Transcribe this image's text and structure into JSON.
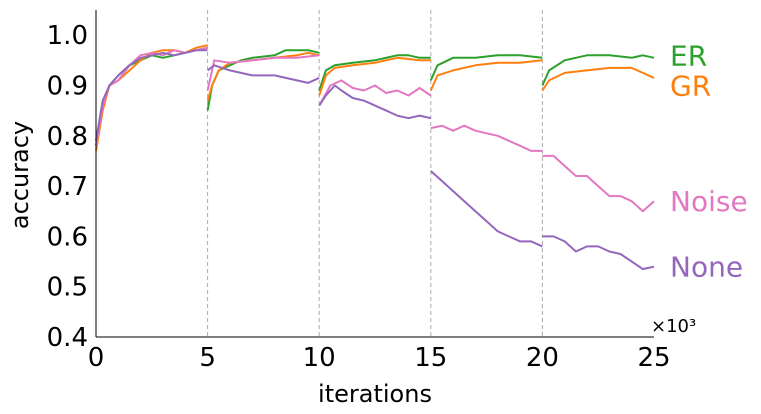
{
  "chart_data": {
    "type": "line",
    "title": "",
    "xlabel": "iterations",
    "ylabel": "accuracy",
    "x_multiplier_label": "×10³",
    "xlim": [
      0,
      25
    ],
    "ylim": [
      0.4,
      1.05
    ],
    "xticks": [
      0,
      5,
      10,
      15,
      20,
      25
    ],
    "xtick_labels": [
      "0",
      "5",
      "10",
      "15",
      "20",
      "25"
    ],
    "yticks": [
      0.4,
      0.5,
      0.6,
      0.7,
      0.8,
      0.9,
      1.0
    ],
    "ytick_labels": [
      "0.4",
      "0.5",
      "0.6",
      "0.7",
      "0.8",
      "0.9",
      "1.0"
    ],
    "task_boundaries": [
      5,
      10,
      15,
      20
    ],
    "grid": false,
    "series": [
      {
        "name": "ER",
        "color": "#2ca02c",
        "label_y": 0.96,
        "segments": [
          [
            [
              0,
              0.78
            ],
            [
              0.3,
              0.86
            ],
            [
              0.6,
              0.9
            ],
            [
              1,
              0.92
            ],
            [
              1.5,
              0.94
            ],
            [
              2,
              0.95
            ],
            [
              2.5,
              0.96
            ],
            [
              3,
              0.955
            ],
            [
              3.5,
              0.96
            ],
            [
              4,
              0.965
            ],
            [
              4.5,
              0.97
            ],
            [
              5,
              0.975
            ]
          ],
          [
            [
              5,
              0.85
            ],
            [
              5.2,
              0.9
            ],
            [
              5.5,
              0.93
            ],
            [
              6,
              0.94
            ],
            [
              6.5,
              0.95
            ],
            [
              7,
              0.955
            ],
            [
              8,
              0.96
            ],
            [
              8.5,
              0.97
            ],
            [
              9,
              0.97
            ],
            [
              9.5,
              0.97
            ],
            [
              10,
              0.965
            ]
          ],
          [
            [
              10,
              0.89
            ],
            [
              10.3,
              0.93
            ],
            [
              10.7,
              0.94
            ],
            [
              11.5,
              0.945
            ],
            [
              12.5,
              0.95
            ],
            [
              13.5,
              0.96
            ],
            [
              14,
              0.96
            ],
            [
              14.5,
              0.955
            ],
            [
              15,
              0.955
            ]
          ],
          [
            [
              15,
              0.91
            ],
            [
              15.3,
              0.94
            ],
            [
              16,
              0.955
            ],
            [
              17,
              0.955
            ],
            [
              18,
              0.96
            ],
            [
              19,
              0.96
            ],
            [
              20,
              0.955
            ]
          ],
          [
            [
              20,
              0.9
            ],
            [
              20.3,
              0.93
            ],
            [
              21,
              0.95
            ],
            [
              22,
              0.96
            ],
            [
              23,
              0.96
            ],
            [
              24,
              0.955
            ],
            [
              24.5,
              0.96
            ],
            [
              25,
              0.955
            ]
          ]
        ]
      },
      {
        "name": "GR",
        "color": "#ff7f0e",
        "label_y": 0.9,
        "segments": [
          [
            [
              0,
              0.77
            ],
            [
              0.3,
              0.85
            ],
            [
              0.6,
              0.9
            ],
            [
              1,
              0.91
            ],
            [
              1.5,
              0.93
            ],
            [
              2,
              0.95
            ],
            [
              2.5,
              0.965
            ],
            [
              3,
              0.97
            ],
            [
              3.5,
              0.97
            ],
            [
              4,
              0.965
            ],
            [
              4.5,
              0.975
            ],
            [
              5,
              0.98
            ]
          ],
          [
            [
              5,
              0.87
            ],
            [
              5.2,
              0.9
            ],
            [
              5.5,
              0.93
            ],
            [
              6,
              0.945
            ],
            [
              7,
              0.95
            ],
            [
              8,
              0.955
            ],
            [
              9,
              0.96
            ],
            [
              9.5,
              0.965
            ],
            [
              10,
              0.96
            ]
          ],
          [
            [
              10,
              0.88
            ],
            [
              10.3,
              0.92
            ],
            [
              10.7,
              0.935
            ],
            [
              11.5,
              0.94
            ],
            [
              12.5,
              0.945
            ],
            [
              13.5,
              0.955
            ],
            [
              14.5,
              0.95
            ],
            [
              15,
              0.95
            ]
          ],
          [
            [
              15,
              0.89
            ],
            [
              15.3,
              0.92
            ],
            [
              16,
              0.93
            ],
            [
              17,
              0.94
            ],
            [
              18,
              0.945
            ],
            [
              19,
              0.945
            ],
            [
              20,
              0.95
            ]
          ],
          [
            [
              20,
              0.89
            ],
            [
              20.3,
              0.91
            ],
            [
              21,
              0.925
            ],
            [
              22,
              0.93
            ],
            [
              23,
              0.935
            ],
            [
              24,
              0.935
            ],
            [
              24.5,
              0.925
            ],
            [
              25,
              0.915
            ]
          ]
        ]
      },
      {
        "name": "Noise",
        "color": "#e377c2",
        "label_y": 0.67,
        "segments": [
          [
            [
              0,
              0.78
            ],
            [
              0.3,
              0.86
            ],
            [
              0.6,
              0.9
            ],
            [
              1,
              0.91
            ],
            [
              1.5,
              0.94
            ],
            [
              2,
              0.96
            ],
            [
              2.5,
              0.965
            ],
            [
              3,
              0.96
            ],
            [
              3.5,
              0.97
            ],
            [
              4,
              0.965
            ],
            [
              4.5,
              0.97
            ],
            [
              5,
              0.975
            ]
          ],
          [
            [
              5,
              0.89
            ],
            [
              5.3,
              0.95
            ],
            [
              6,
              0.945
            ],
            [
              7,
              0.95
            ],
            [
              8,
              0.955
            ],
            [
              9,
              0.955
            ],
            [
              10,
              0.96
            ]
          ],
          [
            [
              10,
              0.86
            ],
            [
              10.5,
              0.9
            ],
            [
              11,
              0.91
            ],
            [
              11.5,
              0.895
            ],
            [
              12,
              0.89
            ],
            [
              12.5,
              0.9
            ],
            [
              13,
              0.885
            ],
            [
              13.5,
              0.89
            ],
            [
              14,
              0.88
            ],
            [
              14.5,
              0.895
            ],
            [
              15,
              0.88
            ]
          ],
          [
            [
              15,
              0.815
            ],
            [
              15.5,
              0.82
            ],
            [
              16,
              0.81
            ],
            [
              16.5,
              0.82
            ],
            [
              17,
              0.81
            ],
            [
              17.5,
              0.805
            ],
            [
              18,
              0.8
            ],
            [
              18.5,
              0.79
            ],
            [
              19,
              0.78
            ],
            [
              19.5,
              0.77
            ],
            [
              20,
              0.77
            ]
          ],
          [
            [
              20,
              0.76
            ],
            [
              20.5,
              0.76
            ],
            [
              21,
              0.74
            ],
            [
              21.5,
              0.72
            ],
            [
              22,
              0.72
            ],
            [
              22.5,
              0.7
            ],
            [
              23,
              0.68
            ],
            [
              23.5,
              0.68
            ],
            [
              24,
              0.67
            ],
            [
              24.5,
              0.65
            ],
            [
              25,
              0.67
            ]
          ]
        ]
      },
      {
        "name": "None",
        "color": "#9467bd",
        "label_y": 0.54,
        "segments": [
          [
            [
              0,
              0.79
            ],
            [
              0.3,
              0.87
            ],
            [
              0.6,
              0.9
            ],
            [
              1,
              0.92
            ],
            [
              1.5,
              0.94
            ],
            [
              2,
              0.955
            ],
            [
              2.5,
              0.96
            ],
            [
              3,
              0.965
            ],
            [
              3.5,
              0.96
            ],
            [
              4,
              0.965
            ],
            [
              4.5,
              0.97
            ],
            [
              5,
              0.97
            ]
          ],
          [
            [
              5,
              0.93
            ],
            [
              5.3,
              0.94
            ],
            [
              6,
              0.93
            ],
            [
              7,
              0.92
            ],
            [
              8,
              0.92
            ],
            [
              9,
              0.91
            ],
            [
              9.5,
              0.905
            ],
            [
              10,
              0.915
            ]
          ],
          [
            [
              10,
              0.86
            ],
            [
              10.3,
              0.88
            ],
            [
              10.7,
              0.9
            ],
            [
              11,
              0.89
            ],
            [
              11.5,
              0.875
            ],
            [
              12,
              0.87
            ],
            [
              12.5,
              0.86
            ],
            [
              13,
              0.85
            ],
            [
              13.5,
              0.84
            ],
            [
              14,
              0.835
            ],
            [
              14.5,
              0.84
            ],
            [
              15,
              0.835
            ]
          ],
          [
            [
              15,
              0.73
            ],
            [
              15.5,
              0.71
            ],
            [
              16,
              0.69
            ],
            [
              16.5,
              0.67
            ],
            [
              17,
              0.65
            ],
            [
              17.5,
              0.63
            ],
            [
              18,
              0.61
            ],
            [
              18.5,
              0.6
            ],
            [
              19,
              0.59
            ],
            [
              19.5,
              0.59
            ],
            [
              20,
              0.58
            ]
          ],
          [
            [
              20,
              0.6
            ],
            [
              20.5,
              0.6
            ],
            [
              21,
              0.59
            ],
            [
              21.5,
              0.57
            ],
            [
              22,
              0.58
            ],
            [
              22.5,
              0.58
            ],
            [
              23,
              0.57
            ],
            [
              23.5,
              0.565
            ],
            [
              24,
              0.55
            ],
            [
              24.5,
              0.535
            ],
            [
              25,
              0.54
            ]
          ]
        ]
      }
    ]
  }
}
